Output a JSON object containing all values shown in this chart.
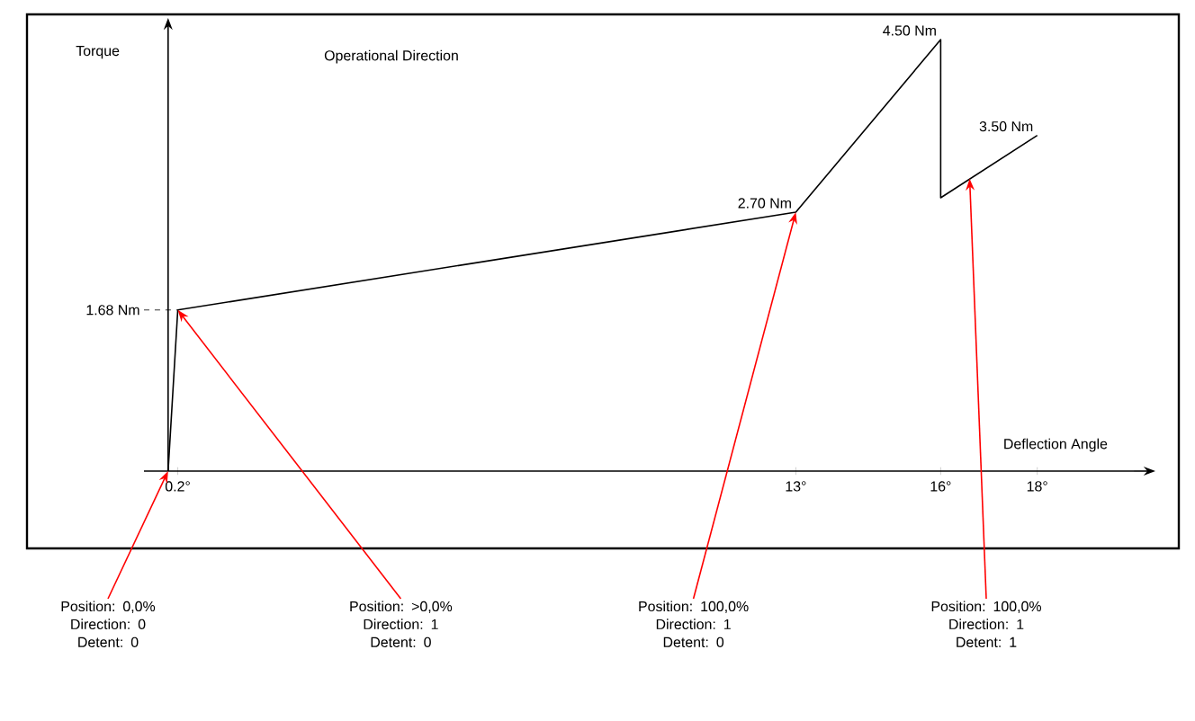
{
  "chart_data": {
    "type": "line",
    "xlabel": "Deflection Angle",
    "ylabel": "Torque",
    "x": [
      0,
      0.2,
      13,
      16,
      16,
      18
    ],
    "values": [
      0,
      1.68,
      2.7,
      4.5,
      2.85,
      3.5
    ],
    "color": "#000000",
    "value_labels": [
      null,
      "1.68 Nm",
      "2.70 Nm",
      "4.50 Nm",
      null,
      "3.50 Nm"
    ],
    "xlim": [
      -0.5,
      20
    ],
    "xticks": [
      {
        "value": 0.2,
        "label": "0.2°"
      },
      {
        "value": 13,
        "label": "13°"
      },
      {
        "value": 16,
        "label": "16°"
      },
      {
        "value": 18,
        "label": "18°"
      }
    ],
    "grid": false,
    "annotations": [
      "Operational Direction",
      {
        "text": "Position: 0,0% Direction: 0 Detent: 0",
        "x": 0,
        "y": 0
      },
      {
        "text": "Position: >0,0% Direction: 1 Detent: 0",
        "x": 0.2,
        "y": 1.68
      },
      {
        "text": "Position: 100,0% Direction: 1 Detent: 0",
        "x": 13,
        "y": 2.7
      },
      {
        "text": "Position: 100,0% Direction: 1 Detent: 1",
        "x": 16.6,
        "y": 3.05
      }
    ]
  }
}
